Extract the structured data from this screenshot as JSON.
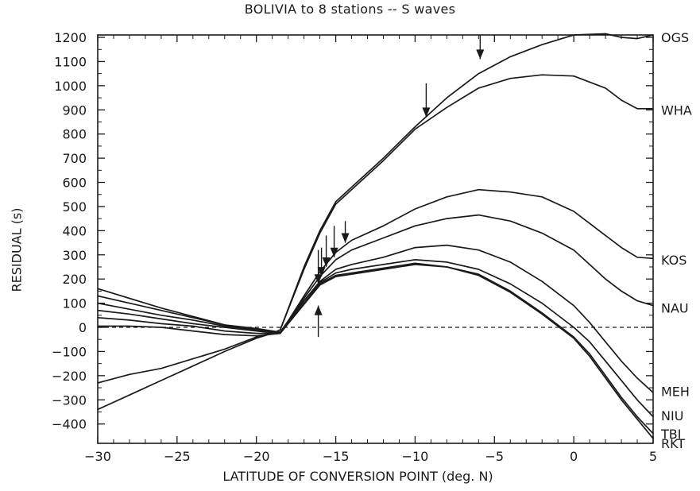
{
  "chart_data": {
    "type": "line",
    "title": "BOLIVIA to  8 stations -- S waves",
    "xlabel": "LATITUDE OF CONVERSION POINT (deg. N)",
    "ylabel": "RESIDUAL (s)",
    "xlim": [
      -30,
      5
    ],
    "ylim": [
      -450,
      1200
    ],
    "x_ticks": [
      -30,
      -25,
      -20,
      -15,
      -10,
      -5,
      0,
      5
    ],
    "x_tick_labels": [
      "−30",
      "−25",
      "−20",
      "−15",
      "−10",
      "−5",
      "0",
      "5"
    ],
    "y_ticks": [
      1200,
      1100,
      1000,
      900,
      800,
      700,
      600,
      500,
      400,
      300,
      200,
      100,
      0,
      -100,
      -200,
      -300,
      -400
    ],
    "y_tick_labels": [
      "1200",
      "1100",
      "1000",
      "900",
      "800",
      "700",
      "600",
      "500",
      "400",
      "300",
      "200",
      "100",
      "0",
      "−100",
      "−200",
      "−300",
      "−400"
    ],
    "grid": false,
    "zero_line": "dashed",
    "station_labels": [
      {
        "name": "OGS",
        "y": 1200
      },
      {
        "name": "WHA",
        "y": 900
      },
      {
        "name": "KOS",
        "y": 280
      },
      {
        "name": "NAU",
        "y": 80
      },
      {
        "name": "MEH",
        "y": -265
      },
      {
        "name": "NIU",
        "y": -365
      },
      {
        "name": "TBI",
        "y": -440
      },
      {
        "name": "RKT",
        "y": -480
      }
    ],
    "series": [
      {
        "name": "OGS",
        "x": [
          -30,
          -28,
          -26,
          -24,
          -22,
          -20,
          -19,
          -18.5,
          -17,
          -16,
          -15,
          -14,
          -12,
          -10,
          -8,
          -6,
          -4,
          -2,
          0,
          2,
          3,
          4,
          5
        ],
        "y": [
          -340,
          -280,
          -220,
          -160,
          -100,
          -45,
          -25,
          -10,
          250,
          400,
          520,
          580,
          700,
          830,
          950,
          1050,
          1120,
          1170,
          1210,
          1215,
          1200,
          1195,
          1210
        ]
      },
      {
        "name": "WHA",
        "x": [
          -30,
          -28,
          -26,
          -24,
          -22,
          -20,
          -19,
          -18.5,
          -17,
          -16,
          -15,
          -14,
          -12,
          -10,
          -8,
          -6,
          -4,
          -2,
          0,
          2,
          3,
          4,
          5
        ],
        "y": [
          -230,
          -195,
          -170,
          -130,
          -90,
          -40,
          -25,
          -10,
          240,
          390,
          510,
          570,
          690,
          820,
          910,
          990,
          1030,
          1045,
          1040,
          990,
          940,
          905,
          905
        ]
      },
      {
        "name": "KOS",
        "x": [
          -30,
          -28,
          -26,
          -24,
          -22,
          -20,
          -18.5,
          -17,
          -16,
          -15,
          -14,
          -12,
          -10,
          -8,
          -6,
          -4,
          -2,
          0,
          1,
          2,
          3,
          4,
          5
        ],
        "y": [
          70,
          55,
          35,
          15,
          0,
          -15,
          -25,
          130,
          230,
          310,
          360,
          420,
          490,
          540,
          570,
          560,
          540,
          480,
          430,
          380,
          330,
          290,
          285
        ]
      },
      {
        "name": "NAU",
        "x": [
          -30,
          -28,
          -26,
          -24,
          -22,
          -20,
          -18.5,
          -17,
          -16,
          -15,
          -14,
          -12,
          -10,
          -8,
          -6,
          -4,
          -2,
          0,
          1,
          2,
          3,
          4,
          5
        ],
        "y": [
          130,
          100,
          70,
          40,
          10,
          -5,
          -20,
          120,
          210,
          280,
          320,
          370,
          420,
          450,
          465,
          440,
          390,
          320,
          260,
          200,
          150,
          110,
          90
        ]
      },
      {
        "name": "MEH",
        "x": [
          -30,
          -28,
          -26,
          -24,
          -22,
          -20,
          -18.5,
          -17,
          -16,
          -15,
          -14,
          -12,
          -10,
          -8,
          -6,
          -4,
          -2,
          0,
          1,
          2,
          3,
          4,
          5
        ],
        "y": [
          160,
          120,
          80,
          45,
          10,
          -10,
          -20,
          110,
          190,
          240,
          260,
          290,
          330,
          340,
          320,
          270,
          190,
          90,
          20,
          -60,
          -140,
          -210,
          -270
        ]
      },
      {
        "name": "NIU",
        "x": [
          -30,
          -28,
          -26,
          -24,
          -22,
          -20,
          -18.5,
          -17,
          -16,
          -15,
          -14,
          -12,
          -10,
          -8,
          -6,
          -4,
          -2,
          0,
          1,
          2,
          3,
          4,
          5
        ],
        "y": [
          100,
          75,
          50,
          30,
          5,
          -10,
          -20,
          110,
          185,
          225,
          240,
          260,
          280,
          270,
          240,
          180,
          100,
          0,
          -60,
          -140,
          -220,
          -300,
          -370
        ]
      },
      {
        "name": "TBI",
        "x": [
          -30,
          -28,
          -26,
          -24,
          -22,
          -20,
          -18.5,
          -17,
          -16,
          -15,
          -14,
          -12,
          -10,
          -8,
          -6,
          -4,
          -2,
          0,
          1,
          2,
          3,
          4,
          5
        ],
        "y": [
          40,
          30,
          15,
          5,
          -15,
          -25,
          -25,
          100,
          180,
          215,
          225,
          245,
          265,
          250,
          220,
          150,
          60,
          -40,
          -110,
          -200,
          -290,
          -370,
          -440
        ]
      },
      {
        "name": "RKT",
        "x": [
          -30,
          -28,
          -26,
          -24,
          -22,
          -20,
          -18.5,
          -17,
          -16,
          -15,
          -14,
          -12,
          -10,
          -8,
          -6,
          -4,
          -2,
          0,
          1,
          2,
          3,
          4,
          5
        ],
        "y": [
          5,
          5,
          0,
          -15,
          -30,
          -35,
          -25,
          95,
          175,
          210,
          220,
          240,
          260,
          250,
          215,
          145,
          55,
          -45,
          -120,
          -210,
          -300,
          -380,
          -460
        ]
      }
    ],
    "arrows": [
      {
        "x": -5.9,
        "y_from": 1210,
        "y_to": 1110,
        "direction": "down"
      },
      {
        "x": -9.3,
        "y_from": 1010,
        "y_to": 870,
        "direction": "down"
      },
      {
        "x": -14.4,
        "y_from": 440,
        "y_to": 350,
        "direction": "down"
      },
      {
        "x": -15.1,
        "y_from": 420,
        "y_to": 290,
        "direction": "down"
      },
      {
        "x": -15.6,
        "y_from": 380,
        "y_to": 250,
        "direction": "down"
      },
      {
        "x": -15.9,
        "y_from": 330,
        "y_to": 210,
        "direction": "down"
      },
      {
        "x": -16.1,
        "y_from": 320,
        "y_to": 180,
        "direction": "down"
      },
      {
        "x": -16.1,
        "y_from": -40,
        "y_to": 90,
        "direction": "up"
      }
    ]
  }
}
